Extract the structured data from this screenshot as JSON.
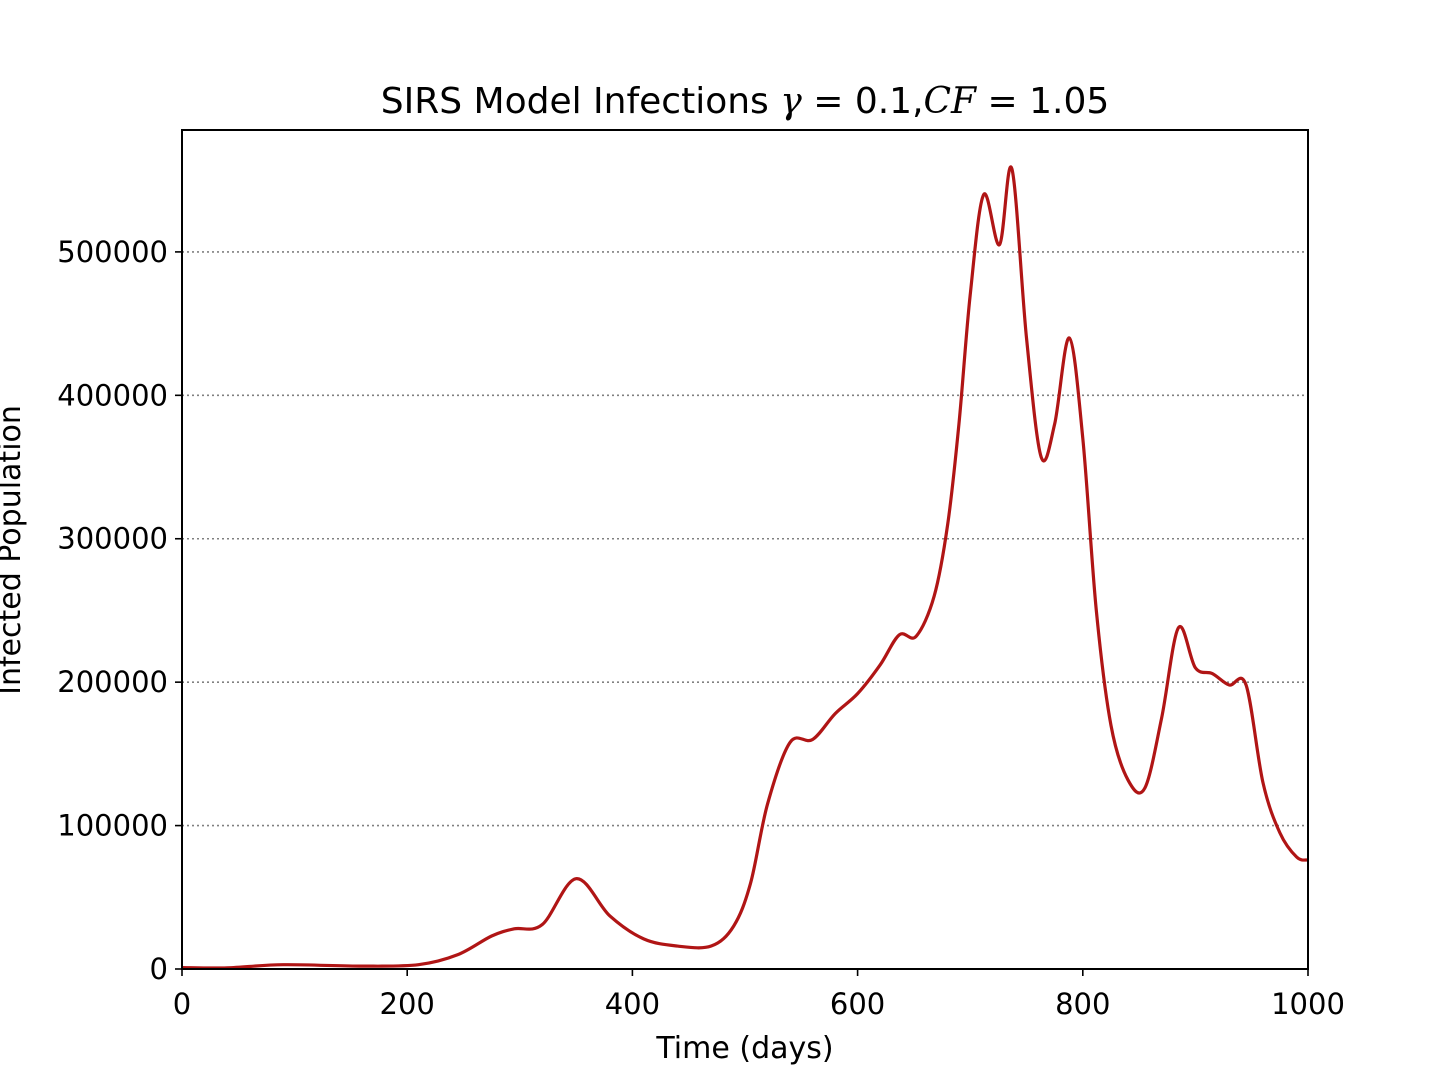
{
  "chart_data": {
    "type": "line",
    "title": {
      "prefix": "SIRS Model Infections ",
      "gamma_symbol": "γ",
      "gamma_value": " = 0.1,",
      "cf_symbol": "CF",
      "cf_value": " = 1.05"
    },
    "xlabel": "Time (days)",
    "ylabel": "Infected Population",
    "xlim": [
      0,
      1000
    ],
    "ylim": [
      0,
      585000
    ],
    "xticks": [
      0,
      200,
      400,
      600,
      800,
      1000
    ],
    "xtick_labels": [
      "0",
      "200",
      "400",
      "600",
      "800",
      "1000"
    ],
    "yticks": [
      0,
      100000,
      200000,
      300000,
      400000,
      500000
    ],
    "ytick_labels": [
      "0",
      "100000",
      "200000",
      "300000",
      "400000",
      "500000"
    ],
    "grid": {
      "y": true,
      "x": false,
      "style": "dotted",
      "color": "#808080"
    },
    "series": [
      {
        "color": "#b01515",
        "x": [
          0,
          40,
          90,
          160,
          210,
          245,
          275,
          295,
          320,
          350,
          380,
          410,
          440,
          470,
          490,
          505,
          520,
          540,
          560,
          580,
          600,
          620,
          637,
          652,
          668,
          680,
          690,
          700,
          712,
          726,
          737,
          750,
          763,
          775,
          788,
          800,
          812,
          825,
          840,
          855,
          870,
          885,
          900,
          915,
          930,
          945,
          960,
          975,
          990,
          1000
        ],
        "y": [
          1000,
          800,
          3000,
          2000,
          3000,
          10000,
          23000,
          28000,
          31000,
          63000,
          37000,
          21000,
          16000,
          16000,
          30000,
          60000,
          115000,
          158000,
          160000,
          178000,
          192000,
          212000,
          233000,
          232000,
          260000,
          310000,
          380000,
          470000,
          540000,
          505000,
          558000,
          440000,
          357000,
          380000,
          440000,
          370000,
          250000,
          170000,
          132000,
          126000,
          175000,
          238000,
          210000,
          206000,
          198000,
          198000,
          130000,
          95000,
          78000,
          76000
        ]
      }
    ]
  }
}
